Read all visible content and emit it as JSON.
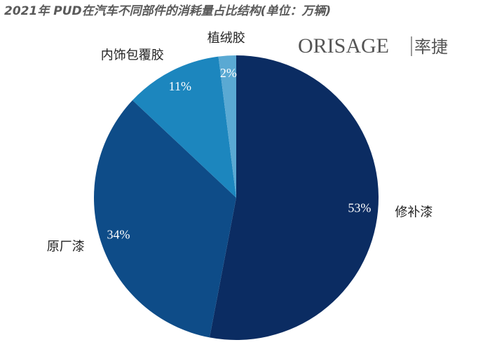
{
  "chart_data": {
    "type": "pie",
    "title": "2021年 PUD在汽车不同部件的消耗量占比结构(单位：万辆)",
    "logo": "ORISAGE",
    "logo_cn": "率捷",
    "categories": [
      "修补漆",
      "原厂漆",
      "内饰包覆胶",
      "植绒胶"
    ],
    "values": [
      53,
      34,
      11,
      2
    ],
    "value_labels": [
      "53%",
      "34%",
      "11%",
      "2%"
    ],
    "colors": [
      "#0b2c62",
      "#0e4c88",
      "#1c86be",
      "#5aa9d3"
    ]
  }
}
